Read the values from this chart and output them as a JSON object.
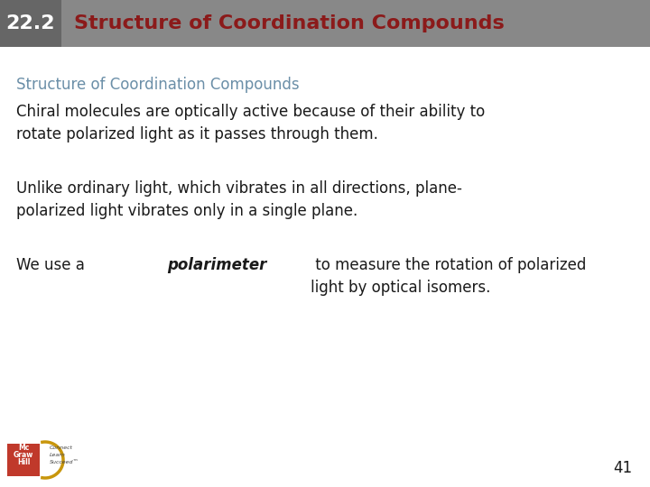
{
  "header_box_color": "#888888",
  "header_num_box_color": "#666666",
  "header_number": "22.2",
  "header_number_color": "#ffffff",
  "header_title": "Structure of Coordination Compounds",
  "header_title_color": "#8B1A1A",
  "subtitle": "Structure of Coordination Compounds",
  "subtitle_color": "#6B8FA8",
  "para1": "Chiral molecules are optically active because of their ability to\nrotate polarized light as it passes through them.",
  "para2": "Unlike ordinary light, which vibrates in all directions, plane-\npolarized light vibrates only in a single plane.",
  "para3_before": "We use a ",
  "para3_bold_italic": "polarimeter",
  "para3_after": " to measure the rotation of polarized\nlight by optical isomers.",
  "page_number": "41",
  "bg_color": "#ffffff",
  "text_color": "#1a1a1a",
  "header_fontsize": 16,
  "subtitle_fontsize": 12,
  "body_fontsize": 12,
  "page_num_fontsize": 12
}
